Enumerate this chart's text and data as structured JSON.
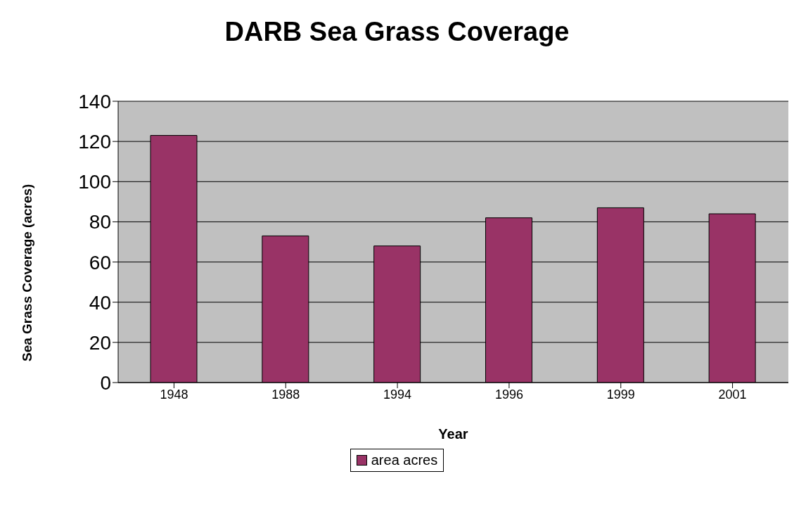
{
  "chart_data": {
    "type": "bar",
    "title": "DARB Sea Grass Coverage",
    "xlabel": "Year",
    "ylabel": "Sea Grass Coverage (acres)",
    "categories": [
      "1948",
      "1988",
      "1994",
      "1996",
      "1999",
      "2001"
    ],
    "series": [
      {
        "name": "area acres",
        "color": "#993366",
        "values": [
          123,
          73,
          68,
          82,
          87,
          84
        ]
      }
    ],
    "ylim": [
      0,
      140
    ],
    "yticks": [
      0,
      20,
      40,
      60,
      80,
      100,
      120,
      140
    ],
    "grid": "y",
    "legend": "bottom"
  }
}
